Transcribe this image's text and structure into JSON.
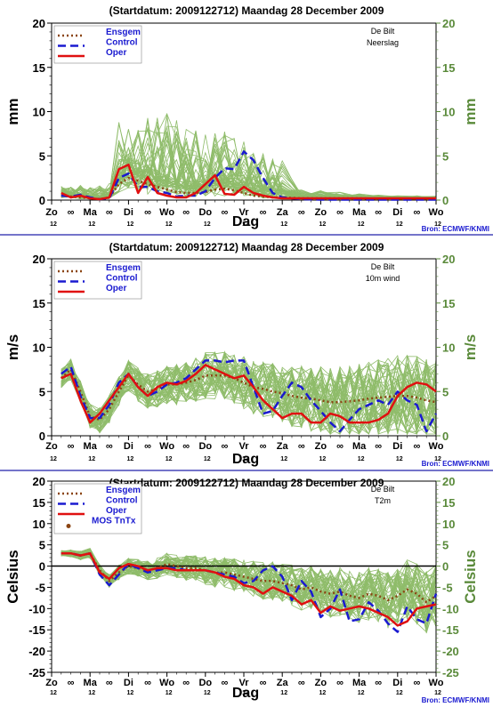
{
  "colors": {
    "ensgem": "#8b4513",
    "control": "#1a1ad0",
    "oper": "#e01010",
    "members": "#8fbc6a",
    "frame": "#000000",
    "separator": "#2222aa",
    "right_axis": "#5a8a3a"
  },
  "chart_data": [
    {
      "type": "line",
      "title": "(Startdatum: 2009122712)   Maandag   28 December  2009",
      "station": "De Bilt",
      "variable": "Neerslag",
      "ylabel": "mm",
      "xlabel": "Dag",
      "ylim": [
        0,
        20
      ],
      "yticks": [
        "0",
        "5",
        "10",
        "15",
        "20"
      ],
      "xlim": [
        0,
        10
      ],
      "day_labels": [
        "Zo",
        "Ma",
        "Di",
        "Wo",
        "Do",
        "Vr",
        "Za",
        "Zo",
        "Ma",
        "Di",
        "Wo"
      ],
      "hour_labels": [
        "12",
        "12",
        "12",
        "12",
        "12",
        "12",
        "12",
        "12",
        "12",
        "12",
        "12"
      ],
      "midnight_marker": "∞",
      "source": "Bron: ECMWF/KNMI",
      "legend": [
        "Ensgem",
        "Control",
        "Oper"
      ],
      "series": [
        {
          "name": "Ensgem",
          "x": [
            0.25,
            0.5,
            0.75,
            1,
            1.25,
            1.5,
            1.75,
            2,
            2.25,
            2.5,
            2.75,
            3,
            3.25,
            3.5,
            3.75,
            4,
            4.25,
            4.5,
            4.75,
            5,
            5.25,
            5.5,
            5.75,
            6,
            6.5,
            7,
            7.5,
            8,
            8.5,
            9,
            9.5,
            10
          ],
          "y": [
            0.5,
            0.4,
            0.3,
            0.2,
            0.1,
            0.3,
            1.8,
            2.5,
            2.2,
            1.8,
            1.5,
            1.2,
            0.9,
            0.8,
            0.8,
            0.9,
            1.2,
            1.3,
            1.1,
            0.8,
            0.5,
            0.4,
            0.3,
            0.3,
            0.2,
            0.2,
            0.2,
            0.2,
            0.15,
            0.15,
            0.15,
            0.1
          ]
        },
        {
          "name": "Control",
          "x": [
            0.25,
            0.5,
            0.75,
            1,
            1.25,
            1.5,
            1.75,
            2,
            2.25,
            2.5,
            2.75,
            3,
            3.25,
            3.5,
            3.75,
            4,
            4.25,
            4.5,
            4.75,
            5,
            5.25,
            5.5,
            5.75,
            6,
            6.5,
            7,
            7.5,
            8,
            8.5,
            9,
            9.5,
            10
          ],
          "y": [
            0.5,
            0.4,
            0.6,
            0.3,
            0.1,
            0.2,
            2.5,
            3.0,
            1.5,
            1.5,
            1.0,
            0.8,
            0.4,
            0.5,
            0.5,
            1.0,
            2.5,
            3.6,
            3.5,
            5.5,
            4.5,
            2.5,
            0.8,
            0.3,
            0.1,
            0.05,
            0.05,
            0.05,
            0.05,
            0.05,
            0.05,
            0.05
          ]
        },
        {
          "name": "Oper",
          "x": [
            0.25,
            0.5,
            0.75,
            1,
            1.25,
            1.5,
            1.75,
            2,
            2.25,
            2.5,
            2.75,
            3,
            3.25,
            3.5,
            3.75,
            4,
            4.25,
            4.5,
            4.75,
            5,
            5.25,
            5.5,
            5.75,
            6,
            6.5,
            7,
            7.5,
            8,
            8.5,
            9,
            9.5,
            10
          ],
          "y": [
            0.8,
            0.3,
            0.5,
            0.2,
            0.1,
            0.3,
            3.5,
            4.0,
            0.8,
            2.6,
            0.8,
            0.5,
            0.3,
            0.3,
            0.8,
            1.8,
            2.8,
            0.7,
            0.6,
            1.5,
            0.8,
            0.5,
            0.3,
            0.2,
            0.2,
            0.2,
            0.2,
            0.2,
            0.2,
            0.2,
            0.2,
            0.2
          ]
        }
      ]
    },
    {
      "type": "line",
      "title": "(Startdatum: 2009122712)   Maandag   28 December  2009",
      "station": "De Bilt",
      "variable": "10m wind",
      "ylabel": "m/s",
      "xlabel": "Dag",
      "ylim": [
        0,
        20
      ],
      "yticks": [
        "0",
        "5",
        "10",
        "15",
        "20"
      ],
      "xlim": [
        0,
        10
      ],
      "day_labels": [
        "Zo",
        "Ma",
        "Di",
        "Wo",
        "Do",
        "Vr",
        "Za",
        "Zo",
        "Ma",
        "Di",
        "Wo"
      ],
      "hour_labels": [
        "12",
        "12",
        "12",
        "12",
        "12",
        "12",
        "12",
        "12",
        "12",
        "12",
        "12"
      ],
      "midnight_marker": "∞",
      "source": "Bron: ECMWF/KNMI",
      "legend": [
        "Ensgem",
        "Control",
        "Oper"
      ],
      "series": [
        {
          "name": "Ensgem",
          "x": [
            0.25,
            0.5,
            0.75,
            1,
            1.25,
            1.5,
            1.75,
            2,
            2.25,
            2.5,
            2.75,
            3,
            3.25,
            3.5,
            3.75,
            4,
            4.25,
            4.5,
            4.75,
            5,
            5.25,
            5.5,
            5.75,
            6,
            6.25,
            6.5,
            6.75,
            7,
            7.25,
            7.5,
            7.75,
            8,
            8.25,
            8.5,
            8.75,
            9,
            9.25,
            9.5,
            9.75,
            10
          ],
          "y": [
            6.5,
            7.5,
            5.0,
            2.2,
            1.8,
            3.0,
            5.0,
            6.8,
            5.8,
            5.0,
            5.3,
            5.8,
            5.8,
            6.0,
            6.3,
            6.8,
            6.8,
            6.8,
            6.5,
            6.0,
            5.5,
            5.3,
            5.0,
            4.8,
            4.5,
            4.3,
            4.2,
            4.0,
            3.8,
            3.8,
            3.9,
            4.0,
            4.2,
            4.3,
            4.4,
            4.5,
            4.5,
            4.3,
            4.0,
            3.8
          ]
        },
        {
          "name": "Control",
          "x": [
            0.25,
            0.5,
            0.75,
            1,
            1.25,
            1.5,
            1.75,
            2,
            2.25,
            2.5,
            2.75,
            3,
            3.25,
            3.5,
            3.75,
            4,
            4.25,
            4.5,
            4.75,
            5,
            5.25,
            5.5,
            5.75,
            6,
            6.25,
            6.5,
            6.75,
            7,
            7.25,
            7.5,
            7.75,
            8,
            8.25,
            8.5,
            8.75,
            9,
            9.25,
            9.5,
            9.75,
            10
          ],
          "y": [
            7.0,
            7.8,
            4.5,
            2.0,
            2.0,
            3.5,
            6.0,
            7.0,
            5.5,
            4.5,
            5.0,
            5.8,
            6.0,
            6.5,
            7.5,
            8.5,
            8.5,
            8.3,
            8.5,
            8.5,
            5.5,
            2.5,
            2.8,
            4.5,
            6.0,
            5.5,
            4.0,
            2.8,
            1.5,
            0.5,
            1.8,
            3.0,
            3.5,
            4.0,
            3.5,
            5.0,
            4.0,
            3.5,
            0.5,
            2.5
          ]
        },
        {
          "name": "Oper",
          "x": [
            0.25,
            0.5,
            0.75,
            1,
            1.25,
            1.5,
            1.75,
            2,
            2.25,
            2.5,
            2.75,
            3,
            3.25,
            3.5,
            3.75,
            4,
            4.25,
            4.5,
            4.75,
            5,
            5.25,
            5.5,
            5.75,
            6,
            6.25,
            6.5,
            6.75,
            7,
            7.25,
            7.5,
            7.75,
            8,
            8.25,
            8.5,
            8.75,
            9,
            9.25,
            9.5,
            9.75,
            10
          ],
          "y": [
            6.5,
            7.0,
            4.0,
            1.5,
            2.5,
            4.0,
            5.5,
            7.0,
            5.5,
            4.5,
            5.5,
            6.0,
            5.8,
            6.2,
            7.0,
            8.0,
            7.5,
            7.0,
            6.5,
            6.8,
            5.5,
            4.0,
            3.0,
            2.0,
            2.5,
            2.5,
            1.5,
            1.5,
            2.5,
            2.2,
            1.5,
            1.5,
            1.5,
            1.8,
            2.5,
            4.5,
            5.5,
            6.0,
            5.8,
            5.0
          ]
        }
      ]
    },
    {
      "type": "line",
      "title": "(Startdatum: 2009122712)   Maandag   28 December  2009",
      "station": "De Bilt",
      "variable": "T2m",
      "ylabel": "Celsius",
      "xlabel": "Dag",
      "ylim": [
        -25,
        20
      ],
      "yticks": [
        "-25",
        "-20",
        "-15",
        "-10",
        "-5",
        "0",
        "5",
        "10",
        "15",
        "20"
      ],
      "xlim": [
        0,
        10
      ],
      "day_labels": [
        "Zo",
        "Ma",
        "Di",
        "Wo",
        "Do",
        "Vr",
        "Za",
        "Zo",
        "Ma",
        "Di",
        "Wo"
      ],
      "hour_labels": [
        "12",
        "12",
        "12",
        "12",
        "12",
        "12",
        "12",
        "12",
        "12",
        "12",
        "12"
      ],
      "midnight_marker": "∞",
      "source": "Bron: ECMWF/KNMI",
      "legend": [
        "Ensgem",
        "Control",
        "Oper",
        "MOS TnTx"
      ],
      "series": [
        {
          "name": "Ensgem",
          "x": [
            0.25,
            0.5,
            0.75,
            1,
            1.25,
            1.5,
            1.75,
            2,
            2.25,
            2.5,
            2.75,
            3,
            3.25,
            3.5,
            3.75,
            4,
            4.25,
            4.5,
            4.75,
            5,
            5.25,
            5.5,
            5.75,
            6,
            6.25,
            6.5,
            6.75,
            7,
            7.25,
            7.5,
            7.75,
            8,
            8.25,
            8.5,
            8.75,
            9,
            9.25,
            9.5,
            9.75,
            10
          ],
          "y": [
            3.0,
            3.0,
            2.5,
            3.0,
            -1.0,
            -3.5,
            -1.5,
            0.0,
            -0.5,
            -1.0,
            -0.5,
            0.5,
            0.0,
            -0.5,
            -0.5,
            -1.0,
            -1.5,
            -1.5,
            -2.0,
            -2.5,
            -3.0,
            -3.5,
            -3.5,
            -4.0,
            -4.5,
            -5.5,
            -5.0,
            -6.0,
            -6.5,
            -6.0,
            -7.0,
            -7.5,
            -6.5,
            -7.0,
            -8.0,
            -7.0,
            -5.5,
            -6.5,
            -8.5,
            -7.0
          ]
        },
        {
          "name": "Control",
          "x": [
            0.25,
            0.5,
            0.75,
            1,
            1.25,
            1.5,
            1.75,
            2,
            2.25,
            2.5,
            2.75,
            3,
            3.25,
            3.5,
            3.75,
            4,
            4.25,
            4.5,
            4.75,
            5,
            5.25,
            5.5,
            5.75,
            6,
            6.25,
            6.5,
            6.75,
            7,
            7.25,
            7.5,
            7.75,
            8,
            8.25,
            8.5,
            8.75,
            9,
            9.25,
            9.5,
            9.75,
            10
          ],
          "y": [
            3.0,
            3.0,
            2.5,
            3.0,
            -2.0,
            -4.5,
            -2.0,
            0.5,
            -0.5,
            -1.5,
            -1.0,
            -0.5,
            -0.5,
            -1.0,
            -1.0,
            -1.0,
            -1.5,
            -2.0,
            -2.5,
            -4.0,
            -3.5,
            -1.0,
            0.0,
            -2.5,
            -8.0,
            -3.5,
            -6.0,
            -12.0,
            -10.0,
            -5.5,
            -13.0,
            -12.5,
            -8.5,
            -10.5,
            -13.5,
            -15.5,
            -9.5,
            -12.5,
            -13.5,
            -6.5
          ]
        },
        {
          "name": "Oper",
          "x": [
            0.25,
            0.5,
            0.75,
            1,
            1.25,
            1.5,
            1.75,
            2,
            2.25,
            2.5,
            2.75,
            3,
            3.25,
            3.5,
            3.75,
            4,
            4.25,
            4.5,
            4.75,
            5,
            5.25,
            5.5,
            5.75,
            6,
            6.25,
            6.5,
            6.75,
            7,
            7.25,
            7.5,
            7.75,
            8,
            8.25,
            8.5,
            8.75,
            9,
            9.25,
            9.5,
            9.75,
            10
          ],
          "y": [
            3.0,
            3.0,
            2.5,
            3.0,
            -1.5,
            -3.0,
            -0.5,
            0.5,
            0.0,
            -1.0,
            -0.5,
            -0.5,
            -1.0,
            -1.0,
            -1.0,
            -1.0,
            -1.5,
            -2.5,
            -3.0,
            -4.5,
            -5.0,
            -6.5,
            -5.0,
            -6.0,
            -7.0,
            -9.0,
            -8.0,
            -11.0,
            -9.5,
            -10.5,
            -10.0,
            -9.5,
            -10.0,
            -11.0,
            -12.0,
            -14.0,
            -13.0,
            -10.0,
            -9.5,
            -9.0
          ]
        }
      ]
    }
  ]
}
